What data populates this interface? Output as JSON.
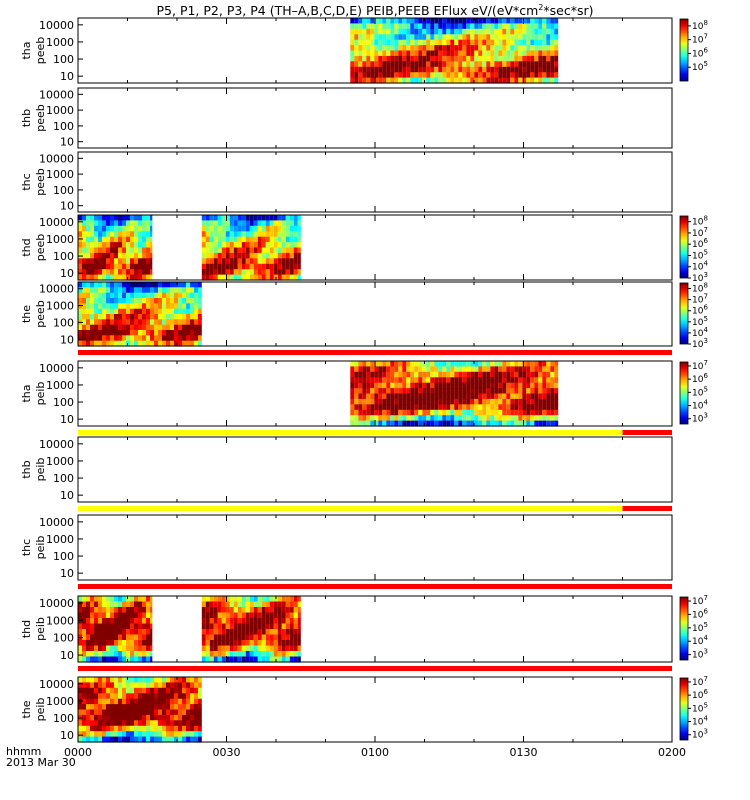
{
  "title": {
    "prefix": "P5, P1, P2, P3, P4 (TH–A,B,C,D,E) PEIB,PEEB EFlux eV/(eV*cm",
    "sup": "2",
    "suffix": "*sec*sr)"
  },
  "x_axis": {
    "label": "hhmm",
    "date": "2013 Mar 30",
    "ticks": [
      "0000",
      "0030",
      "0100",
      "0130",
      "0200"
    ]
  },
  "chart_data": [
    {
      "type": "heatmap",
      "probe": "tha",
      "product": "peeb",
      "ylabel": [
        "tha",
        "peeb"
      ],
      "yscale": "log",
      "yticks": [
        "10000",
        "1000",
        "100",
        "10"
      ],
      "colorbar": {
        "scale": "log",
        "ticks": [
          "10^8",
          "10^7",
          "10^6",
          "10^5"
        ],
        "range": [
          4,
          8.5
        ]
      },
      "coverage": [
        [
          "0055",
          "0137"
        ]
      ],
      "quality_bar": null
    },
    {
      "type": "heatmap",
      "probe": "thb",
      "product": "peeb",
      "ylabel": [
        "thb",
        "peeb"
      ],
      "yscale": "log",
      "yticks": [
        "10000",
        "1000",
        "100",
        "10"
      ],
      "colorbar": null,
      "coverage": [],
      "quality_bar": null
    },
    {
      "type": "heatmap",
      "probe": "thc",
      "product": "peeb",
      "ylabel": [
        "thc",
        "peeb"
      ],
      "yscale": "log",
      "yticks": [
        "10000",
        "1000",
        "100",
        "10"
      ],
      "colorbar": null,
      "coverage": [],
      "quality_bar": null
    },
    {
      "type": "heatmap",
      "probe": "thd",
      "product": "peeb",
      "ylabel": [
        "thd",
        "peeb"
      ],
      "yscale": "log",
      "yticks": [
        "10000",
        "1000",
        "100",
        "10"
      ],
      "colorbar": {
        "scale": "log",
        "ticks": [
          "10^8",
          "10^7",
          "10^6",
          "10^5",
          "10^4",
          "10^3"
        ],
        "range": [
          3,
          8.5
        ]
      },
      "coverage": [
        [
          "0000",
          "0015"
        ],
        [
          "0025",
          "0045"
        ]
      ],
      "quality_bar": null
    },
    {
      "type": "heatmap",
      "probe": "the",
      "product": "peeb",
      "ylabel": [
        "the",
        "peeb"
      ],
      "yscale": "log",
      "yticks": [
        "10000",
        "1000",
        "100",
        "10"
      ],
      "colorbar": {
        "scale": "log",
        "ticks": [
          "10^8",
          "10^7",
          "10^6",
          "10^5",
          "10^4",
          "10^3"
        ],
        "range": [
          3,
          8.5
        ]
      },
      "coverage": [
        [
          "0000",
          "0025"
        ]
      ],
      "quality_bar": {
        "segments": [
          {
            "from": "0000",
            "to": "0200",
            "color": "#ff0000"
          }
        ]
      }
    },
    {
      "type": "heatmap",
      "probe": "tha",
      "product": "peib",
      "ylabel": [
        "tha",
        "peib"
      ],
      "yscale": "log",
      "yticks": [
        "10000",
        "1000",
        "100",
        "10"
      ],
      "colorbar": {
        "scale": "log",
        "ticks": [
          "10^7",
          "10^6",
          "10^5",
          "10^4",
          "10^3"
        ],
        "range": [
          2.6,
          7.3
        ]
      },
      "coverage": [
        [
          "0055",
          "0137"
        ]
      ],
      "quality_bar": {
        "segments": [
          {
            "from": "0000",
            "to": "0150",
            "color": "#ffff00"
          },
          {
            "from": "0150",
            "to": "0200",
            "color": "#ff0000"
          }
        ]
      }
    },
    {
      "type": "heatmap",
      "probe": "thb",
      "product": "peib",
      "ylabel": [
        "thb",
        "peib"
      ],
      "yscale": "log",
      "yticks": [
        "10000",
        "1000",
        "100",
        "10"
      ],
      "colorbar": null,
      "coverage": [],
      "quality_bar": {
        "segments": [
          {
            "from": "0000",
            "to": "0150",
            "color": "#ffff00"
          },
          {
            "from": "0150",
            "to": "0200",
            "color": "#ff0000"
          }
        ]
      }
    },
    {
      "type": "heatmap",
      "probe": "thc",
      "product": "peib",
      "ylabel": [
        "thc",
        "peib"
      ],
      "yscale": "log",
      "yticks": [
        "10000",
        "1000",
        "100",
        "10"
      ],
      "colorbar": null,
      "coverage": [],
      "quality_bar": {
        "segments": [
          {
            "from": "0000",
            "to": "0200",
            "color": "#ff0000"
          }
        ]
      }
    },
    {
      "type": "heatmap",
      "probe": "thd",
      "product": "peib",
      "ylabel": [
        "thd",
        "peib"
      ],
      "yscale": "log",
      "yticks": [
        "10000",
        "1000",
        "100",
        "10"
      ],
      "colorbar": {
        "scale": "log",
        "ticks": [
          "10^7",
          "10^6",
          "10^5",
          "10^4",
          "10^3"
        ],
        "range": [
          2.6,
          7.3
        ]
      },
      "coverage": [
        [
          "0000",
          "0015"
        ],
        [
          "0025",
          "0045"
        ]
      ],
      "quality_bar": {
        "segments": [
          {
            "from": "0000",
            "to": "0200",
            "color": "#ff0000"
          }
        ]
      }
    },
    {
      "type": "heatmap",
      "probe": "the",
      "product": "peib",
      "ylabel": [
        "the",
        "peib"
      ],
      "yscale": "log",
      "yticks": [
        "10000",
        "1000",
        "100",
        "10"
      ],
      "colorbar": {
        "scale": "log",
        "ticks": [
          "10^7",
          "10^6",
          "10^5",
          "10^4",
          "10^3"
        ],
        "range": [
          2.6,
          7.3
        ]
      },
      "coverage": [
        [
          "0000",
          "0025"
        ]
      ],
      "quality_bar": null
    }
  ]
}
